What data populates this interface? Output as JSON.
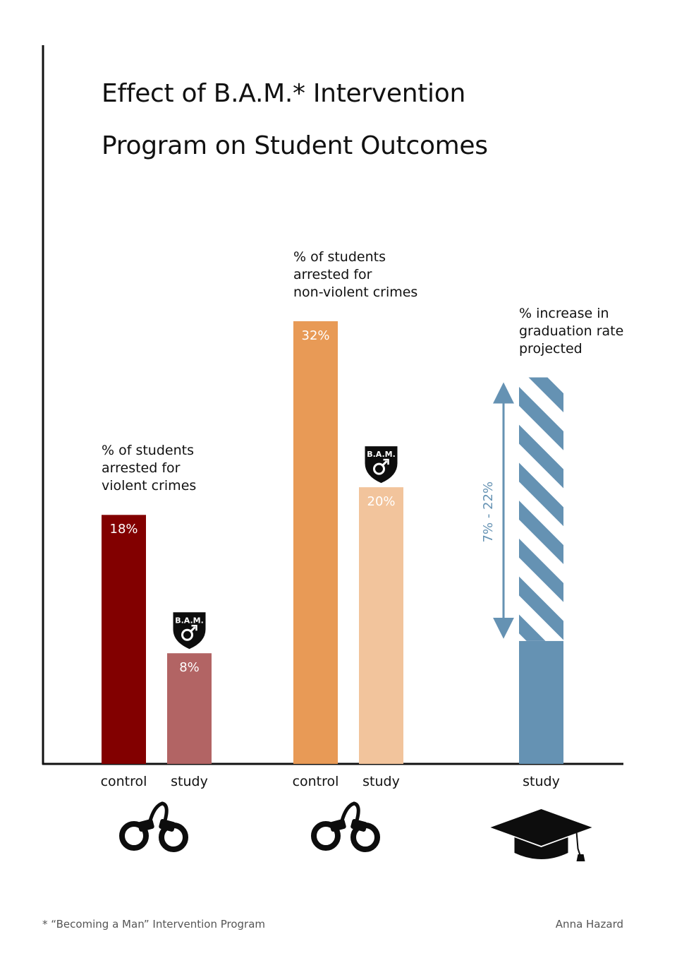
{
  "chart_data": {
    "type": "bar",
    "title": "Effect of B.A.M.* Intervention Program on Student Outcomes",
    "title_lines": [
      "Effect of B.A.M.* Intervention",
      "Program on Student Outcomes"
    ],
    "groups": [
      {
        "label_lines": [
          "% of students",
          "arrested for",
          "violent crimes"
        ],
        "bars": [
          {
            "category": "control",
            "value": 18,
            "value_label": "18%",
            "color": "#820000"
          },
          {
            "category": "study",
            "value": 8,
            "value_label": "8%",
            "color": "#b26464",
            "badge": true
          }
        ],
        "icon": "handcuffs-icon"
      },
      {
        "label_lines": [
          "% of students",
          "arrested for",
          "non-violent crimes"
        ],
        "bars": [
          {
            "category": "control",
            "value": 32,
            "value_label": "32%",
            "color": "#e89a56"
          },
          {
            "category": "study",
            "value": 20,
            "value_label": "20%",
            "color": "#f2c49c",
            "badge": true
          }
        ],
        "icon": "handcuffs-icon"
      },
      {
        "label_lines": [
          "% increase in",
          "graduation rate",
          "projected"
        ],
        "bars": [
          {
            "category": "study",
            "range": [
              7,
              22
            ],
            "range_label": "7% - 22%",
            "color": "#6592b3"
          }
        ],
        "icon": "graduation-cap-icon"
      }
    ],
    "badge_text": "B.A.M.",
    "ylim": [
      0,
      32
    ],
    "grid": false,
    "legend": "none"
  },
  "footnote": "* “Becoming a Man” Intervention Program",
  "credit": "Anna Hazard"
}
